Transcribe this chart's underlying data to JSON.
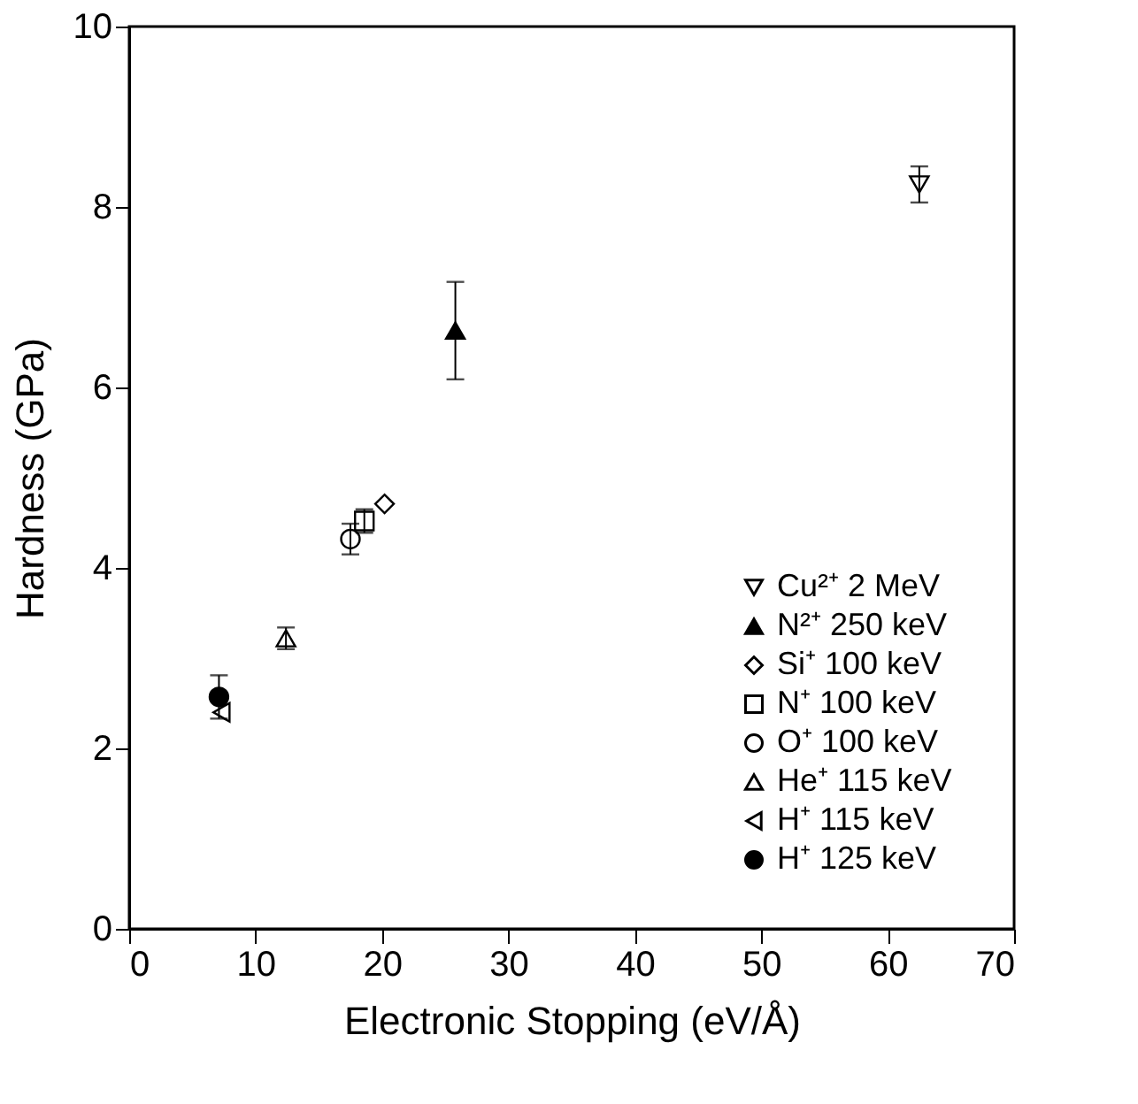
{
  "chart_data": {
    "type": "scatter",
    "xlabel": "Electronic Stopping (eV/Å)",
    "ylabel": "Hardness (GPa)",
    "xlim": [
      0,
      70
    ],
    "xticks": [
      0,
      10,
      20,
      30,
      40,
      50,
      60,
      70
    ],
    "ylim": [
      0,
      10
    ],
    "yticks": [
      0,
      2,
      4,
      6,
      8,
      10
    ],
    "grid": false,
    "legend": "bottom right",
    "series": [
      {
        "name": "Cu²⁺  2 MeV",
        "color": "#ffffff",
        "marker": "triangle-down",
        "x": [
          62.5
        ],
        "values": [
          8.25
        ],
        "errors": [
          0.2
        ]
      },
      {
        "name": "N²⁺  250 keV",
        "color": "#000000",
        "marker": "triangle",
        "x": [
          25.8
        ],
        "values": [
          6.63
        ],
        "errors": [
          0.54
        ]
      },
      {
        "name": "Si⁺  100 keV",
        "color": "#ffffff",
        "marker": "diamond",
        "x": [
          20.2
        ],
        "values": [
          4.71
        ],
        "errors": [
          null
        ]
      },
      {
        "name": "N⁺  100 keV",
        "color": "#ffffff",
        "marker": "square",
        "x": [
          18.6
        ],
        "values": [
          4.52
        ],
        "errors": [
          0.13
        ]
      },
      {
        "name": "O⁺  100 keV",
        "color": "#ffffff",
        "marker": "circle",
        "x": [
          17.5
        ],
        "values": [
          4.32
        ],
        "errors": [
          0.17
        ]
      },
      {
        "name": "He⁺  115 keV",
        "color": "#ffffff",
        "marker": "triangle",
        "x": [
          12.4
        ],
        "values": [
          3.22
        ],
        "errors": [
          0.12
        ]
      },
      {
        "name": "H⁺  115 keV",
        "color": "#ffffff",
        "marker": "triangle-left",
        "x": [
          7.3
        ],
        "values": [
          2.4
        ],
        "errors": [
          null
        ]
      },
      {
        "name": "H⁺  125 keV",
        "color": "#000000",
        "marker": "circle",
        "x": [
          7.1
        ],
        "values": [
          2.57
        ],
        "errors": [
          0.24
        ]
      }
    ]
  }
}
